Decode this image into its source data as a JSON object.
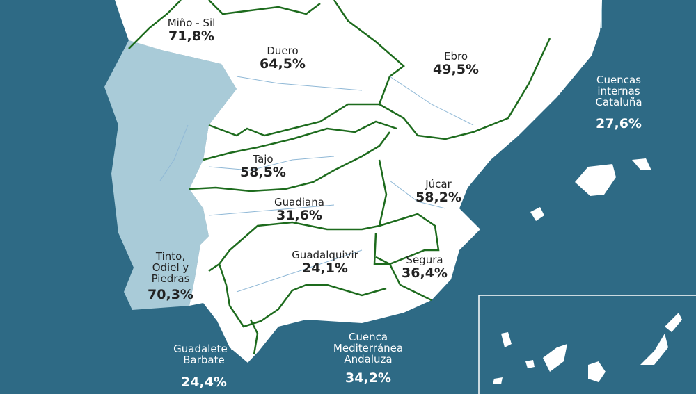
{
  "colors": {
    "sea": "#2e6a85",
    "land": "#ffffff",
    "neighbor": "#a9cbd8",
    "basin_border": "#1d6b1d",
    "river": "#8fb8d6"
  },
  "basins": [
    {
      "id": "mino-sil",
      "name": "Miño - Sil",
      "value": "71,8%"
    },
    {
      "id": "duero",
      "name": "Duero",
      "value": "64,5%"
    },
    {
      "id": "ebro",
      "name": "Ebro",
      "value": "49,5%"
    },
    {
      "id": "cuencas-internas-cataluna",
      "name": "Cuencas internas Cataluña",
      "value": "27,6%"
    },
    {
      "id": "tajo",
      "name": "Tajo",
      "value": "58,5%"
    },
    {
      "id": "jucar",
      "name": "Júcar",
      "value": "58,2%"
    },
    {
      "id": "guadiana",
      "name": "Guadiana",
      "value": "31,6%"
    },
    {
      "id": "tinto-odiel-piedras",
      "name": "Tinto, Odiel y Piedras",
      "value": "70,3%"
    },
    {
      "id": "guadalquivir",
      "name": "Guadalquivir",
      "value": "24,1%"
    },
    {
      "id": "segura",
      "name": "Segura",
      "value": "36,4%"
    },
    {
      "id": "guadalete-barbate",
      "name": "Guadalete -Barbate",
      "value": "24,4%"
    },
    {
      "id": "cuenca-mediterranea-andaluza",
      "name": "Cuenca Mediterránea Andaluza",
      "value": "34,2%"
    }
  ]
}
